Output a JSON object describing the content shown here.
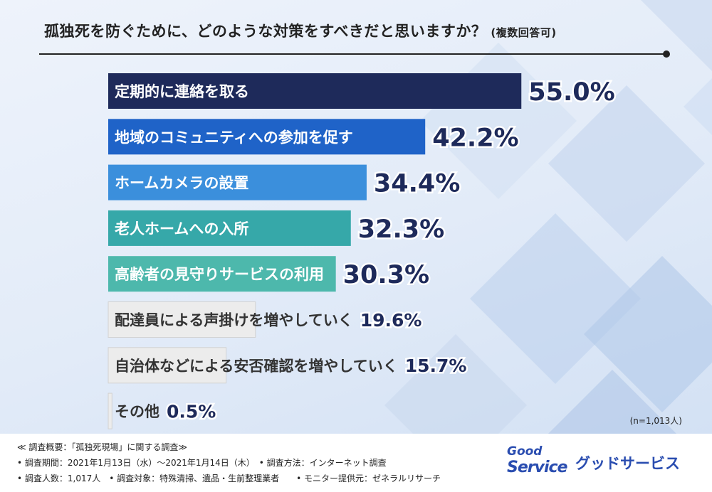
{
  "title": "孤独死を防ぐために、どのような対策をすべきだと思いますか？",
  "title_note": "(複数回答可)",
  "sample_note": "(n=1,013人)",
  "chart_data": {
    "type": "bar",
    "orientation": "horizontal",
    "title": "孤独死を防ぐために、どのような対策をすべきだと思いますか？(複数回答可)",
    "categories": [
      "定期的に連絡を取る",
      "地域のコミュニティへの参加を促す",
      "ホームカメラの設置",
      "老人ホームへの入所",
      "高齢者の見守りサービスの利用",
      "配達員による声掛けを増やしていく",
      "自治体などによる安否確認を増やしていく",
      "その他"
    ],
    "values": [
      55.0,
      42.2,
      34.4,
      32.3,
      30.3,
      19.6,
      15.7,
      0.5
    ],
    "value_labels": [
      "55.0%",
      "42.2%",
      "34.4%",
      "32.3%",
      "30.3%",
      "19.6%",
      "15.7%",
      "0.5%"
    ],
    "bar_colors": [
      "#1e2a5a",
      "#1f63c8",
      "#3b8fdc",
      "#36a8a9",
      "#4db8ac",
      "#ececec",
      "#ececec",
      "#ececec"
    ],
    "grid": false
  },
  "footer": {
    "line1": "≪ 調査概要：「孤独死現場」に関する調査≫",
    "line2": "• 調査期間：2021年1月13日（水）～2021年1月14日（木）　• 調査方法：インターネット調査",
    "line3": "• 調査人数：1,017人　• 調査対象：特殊清掃、遺品・生前整理業者　　• モニター提供元：ゼネラルリサーチ"
  },
  "brand": {
    "logo_line1": "Good",
    "logo_line2": "Service",
    "name": "グッドサービス"
  }
}
